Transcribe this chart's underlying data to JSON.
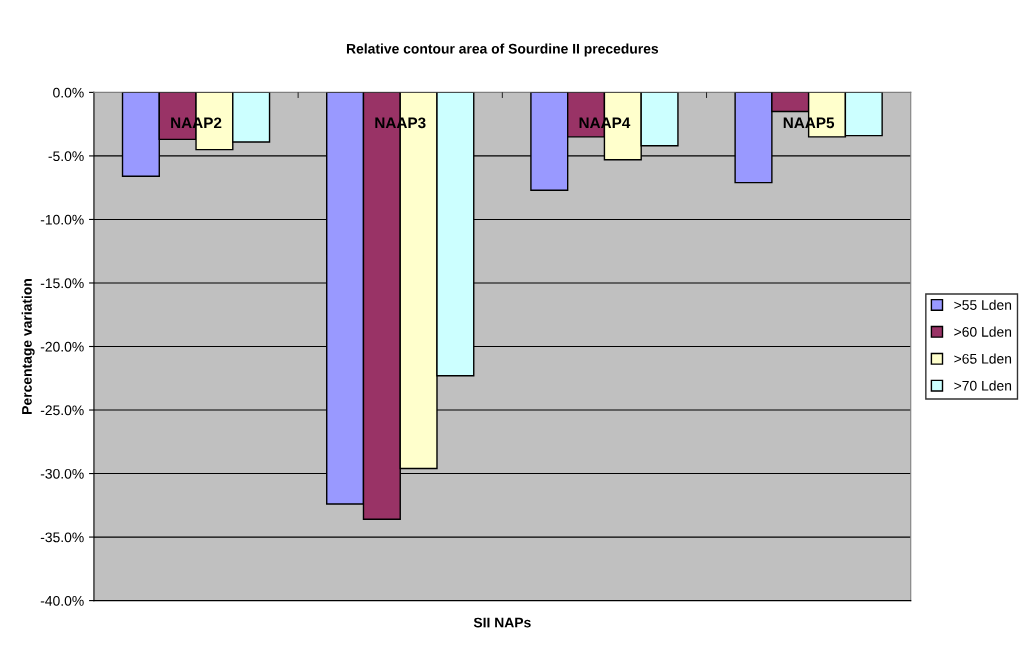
{
  "chart_data": {
    "type": "bar",
    "title": "Relative contour area of Sourdine II precedures",
    "xlabel": "SII NAPs",
    "ylabel": "Percentage variation",
    "categories": [
      "NAAP2",
      "NAAP3",
      "NAAP4",
      "NAAP5"
    ],
    "series": [
      {
        "name": ">55 Lden",
        "color": "#9999ff",
        "values": [
          -6.6,
          -32.4,
          -7.7,
          -7.1
        ]
      },
      {
        "name": ">60 Lden",
        "color": "#993366",
        "values": [
          -3.7,
          -33.6,
          -3.5,
          -1.5
        ]
      },
      {
        "name": ">65 Lden",
        "color": "#ffffcc",
        "values": [
          -4.5,
          -29.6,
          -5.3,
          -3.5
        ]
      },
      {
        "name": ">70 Lden",
        "color": "#ccffff",
        "values": [
          -3.9,
          -22.3,
          -4.2,
          -3.4
        ]
      }
    ],
    "ylim": [
      -40,
      0
    ],
    "yticks": [
      {
        "value": -40,
        "label": "-40.0%"
      },
      {
        "value": -35,
        "label": "-35.0%"
      },
      {
        "value": -30,
        "label": "-30.0%"
      },
      {
        "value": -25,
        "label": "-25.0%"
      },
      {
        "value": -20,
        "label": "-20.0%"
      },
      {
        "value": -15,
        "label": "-15.0%"
      },
      {
        "value": -10,
        "label": "-10.0%"
      },
      {
        "value": -5,
        "label": "-5.0%"
      },
      {
        "value": 0,
        "label": "0.0%"
      }
    ],
    "grid": "y",
    "legend": "right"
  }
}
